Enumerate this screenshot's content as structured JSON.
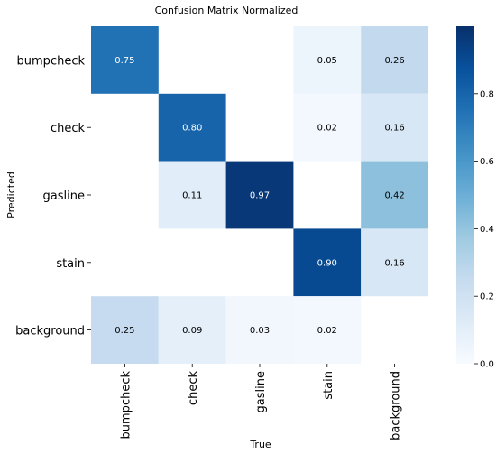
{
  "chart_data": {
    "type": "heatmap",
    "title": "Confusion Matrix Normalized",
    "xlabel": "True",
    "ylabel": "Predicted",
    "x_categories": [
      "bumpcheck",
      "check",
      "gasline",
      "stain",
      "background"
    ],
    "y_categories": [
      "bumpcheck",
      "check",
      "gasline",
      "stain",
      "background"
    ],
    "matrix": [
      [
        0.75,
        null,
        null,
        0.05,
        0.26
      ],
      [
        null,
        0.8,
        null,
        0.02,
        0.16
      ],
      [
        null,
        0.11,
        0.97,
        null,
        0.42
      ],
      [
        null,
        null,
        null,
        0.9,
        0.16
      ],
      [
        0.25,
        0.09,
        0.03,
        0.02,
        null
      ]
    ],
    "value_labels": [
      [
        "0.75",
        "",
        "",
        "0.05",
        "0.26"
      ],
      [
        "",
        "0.80",
        "",
        "0.02",
        "0.16"
      ],
      [
        "",
        "0.11",
        "0.97",
        "",
        "0.42"
      ],
      [
        "",
        "",
        "",
        "0.90",
        "0.16"
      ],
      [
        "0.25",
        "0.09",
        "0.03",
        "0.02",
        ""
      ]
    ],
    "colorbar": {
      "range": [
        0,
        1
      ],
      "ticks": [
        0.0,
        0.2,
        0.4,
        0.6,
        0.8
      ],
      "tick_labels": [
        "0.0",
        "0.2",
        "0.4",
        "0.6",
        "0.8"
      ],
      "colormap": "Blues"
    },
    "grid": false
  }
}
